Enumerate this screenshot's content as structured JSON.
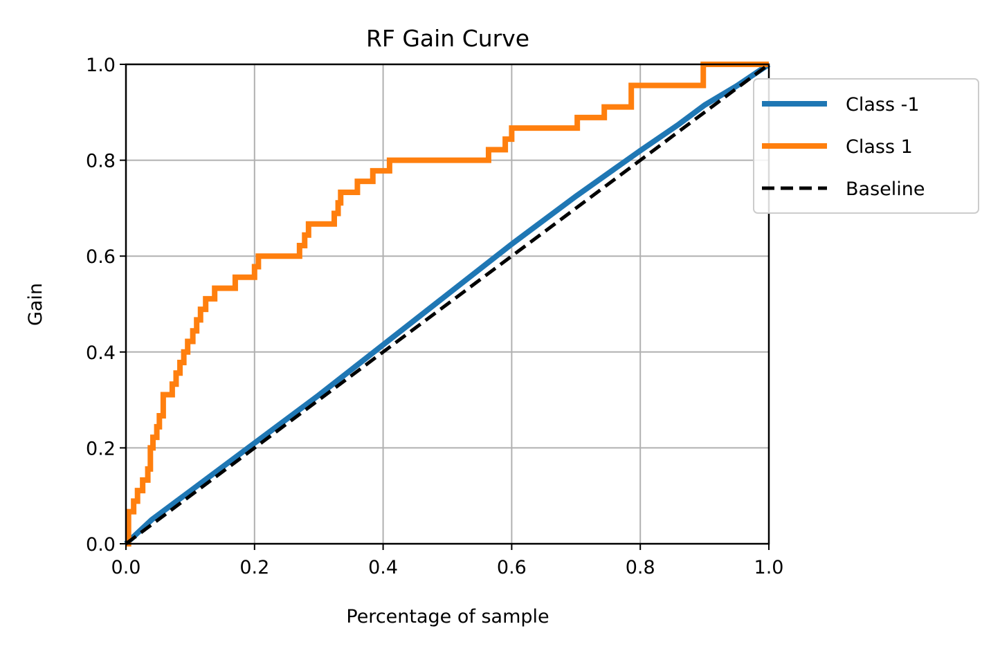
{
  "chart_data": {
    "type": "line",
    "title": "RF Gain Curve",
    "xlabel": "Percentage of sample",
    "ylabel": "Gain",
    "xlim": [
      0.0,
      1.0
    ],
    "ylim": [
      0.0,
      1.0
    ],
    "xticks": [
      0.0,
      0.2,
      0.4,
      0.6,
      0.8,
      1.0
    ],
    "yticks": [
      0.0,
      0.2,
      0.4,
      0.6,
      0.8,
      1.0
    ],
    "xtick_labels": [
      "0.0",
      "0.2",
      "0.4",
      "0.6",
      "0.8",
      "1.0"
    ],
    "ytick_labels": [
      "0.0",
      "0.2",
      "0.4",
      "0.6",
      "0.8",
      "1.0"
    ],
    "grid": true,
    "legend_position": "upper-right-outside",
    "series": [
      {
        "name": "Class -1",
        "color": "#1f77b4",
        "style": "solid",
        "x": [
          0.0,
          0.04,
          0.1,
          0.2,
          0.3,
          0.4,
          0.5,
          0.6,
          0.7,
          0.8,
          0.86,
          0.9,
          0.95,
          1.0
        ],
        "y": [
          0.0,
          0.05,
          0.11,
          0.21,
          0.31,
          0.415,
          0.52,
          0.625,
          0.725,
          0.82,
          0.875,
          0.915,
          0.955,
          1.0
        ]
      },
      {
        "name": "Class 1",
        "color": "#ff7f0e",
        "style": "solid",
        "x": [
          0.0,
          0.004,
          0.004,
          0.012,
          0.012,
          0.018,
          0.018,
          0.026,
          0.026,
          0.034,
          0.034,
          0.038,
          0.038,
          0.042,
          0.042,
          0.048,
          0.048,
          0.052,
          0.052,
          0.058,
          0.058,
          0.066,
          0.066,
          0.072,
          0.072,
          0.078,
          0.078,
          0.084,
          0.084,
          0.09,
          0.09,
          0.096,
          0.096,
          0.104,
          0.104,
          0.11,
          0.11,
          0.116,
          0.116,
          0.124,
          0.124,
          0.138,
          0.138,
          0.17,
          0.17,
          0.2,
          0.2,
          0.206,
          0.206,
          0.27,
          0.27,
          0.278,
          0.278,
          0.284,
          0.284,
          0.324,
          0.324,
          0.33,
          0.33,
          0.334,
          0.334,
          0.36,
          0.36,
          0.384,
          0.384,
          0.41,
          0.41,
          0.564,
          0.564,
          0.59,
          0.59,
          0.6,
          0.6,
          0.702,
          0.702,
          0.744,
          0.744,
          0.786,
          0.786,
          0.894,
          0.894,
          0.898,
          0.898,
          0.956,
          0.956,
          1.0
        ],
        "y": [
          0.0,
          0.0,
          0.067,
          0.067,
          0.089,
          0.089,
          0.111,
          0.111,
          0.133,
          0.133,
          0.156,
          0.156,
          0.2,
          0.2,
          0.222,
          0.222,
          0.244,
          0.244,
          0.267,
          0.267,
          0.311,
          0.311,
          0.311,
          0.311,
          0.333,
          0.333,
          0.356,
          0.356,
          0.378,
          0.378,
          0.4,
          0.4,
          0.422,
          0.422,
          0.444,
          0.444,
          0.467,
          0.467,
          0.489,
          0.489,
          0.511,
          0.511,
          0.533,
          0.533,
          0.556,
          0.556,
          0.578,
          0.578,
          0.6,
          0.6,
          0.622,
          0.622,
          0.644,
          0.644,
          0.667,
          0.667,
          0.689,
          0.689,
          0.711,
          0.711,
          0.733,
          0.733,
          0.756,
          0.756,
          0.778,
          0.778,
          0.8,
          0.8,
          0.822,
          0.822,
          0.844,
          0.844,
          0.867,
          0.867,
          0.889,
          0.889,
          0.911,
          0.911,
          0.956,
          0.956,
          0.956,
          0.956,
          1.0,
          1.0,
          1.0,
          1.0
        ]
      },
      {
        "name": "Baseline",
        "color": "#000000",
        "style": "dashed",
        "x": [
          0.0,
          1.0
        ],
        "y": [
          0.0,
          1.0
        ]
      }
    ]
  }
}
